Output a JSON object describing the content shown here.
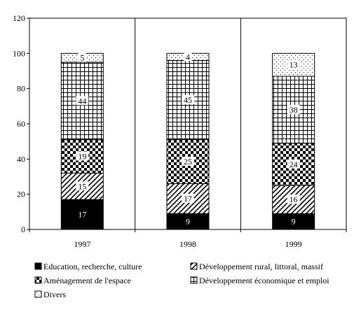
{
  "chart_data": {
    "type": "bar",
    "stacked": true,
    "categories": [
      "1997",
      "1998",
      "1999"
    ],
    "series": [
      {
        "name": "Education, recherche, culture",
        "values": [
          17,
          9,
          9
        ],
        "pattern": "solid",
        "color": "#000000"
      },
      {
        "name": "Développement rural, littoral, massif",
        "values": [
          15,
          17,
          16
        ],
        "pattern": "diagonal",
        "color": "#000000"
      },
      {
        "name": "Aménagement de l'espace",
        "values": [
          19,
          25,
          24
        ],
        "pattern": "checker",
        "color": "#000000"
      },
      {
        "name": "Développement économique et emploi",
        "values": [
          44,
          45,
          38
        ],
        "pattern": "grid",
        "color": "#000000"
      },
      {
        "name": "Divers",
        "values": [
          5,
          4,
          13
        ],
        "pattern": "dots",
        "color": "#000000"
      }
    ],
    "ylim": [
      0,
      120
    ],
    "yticks": [
      0,
      20,
      40,
      60,
      80,
      100,
      120
    ],
    "grid": "vertical-category-separators",
    "legend": "bottom",
    "title": "",
    "xlabel": "",
    "ylabel": ""
  }
}
